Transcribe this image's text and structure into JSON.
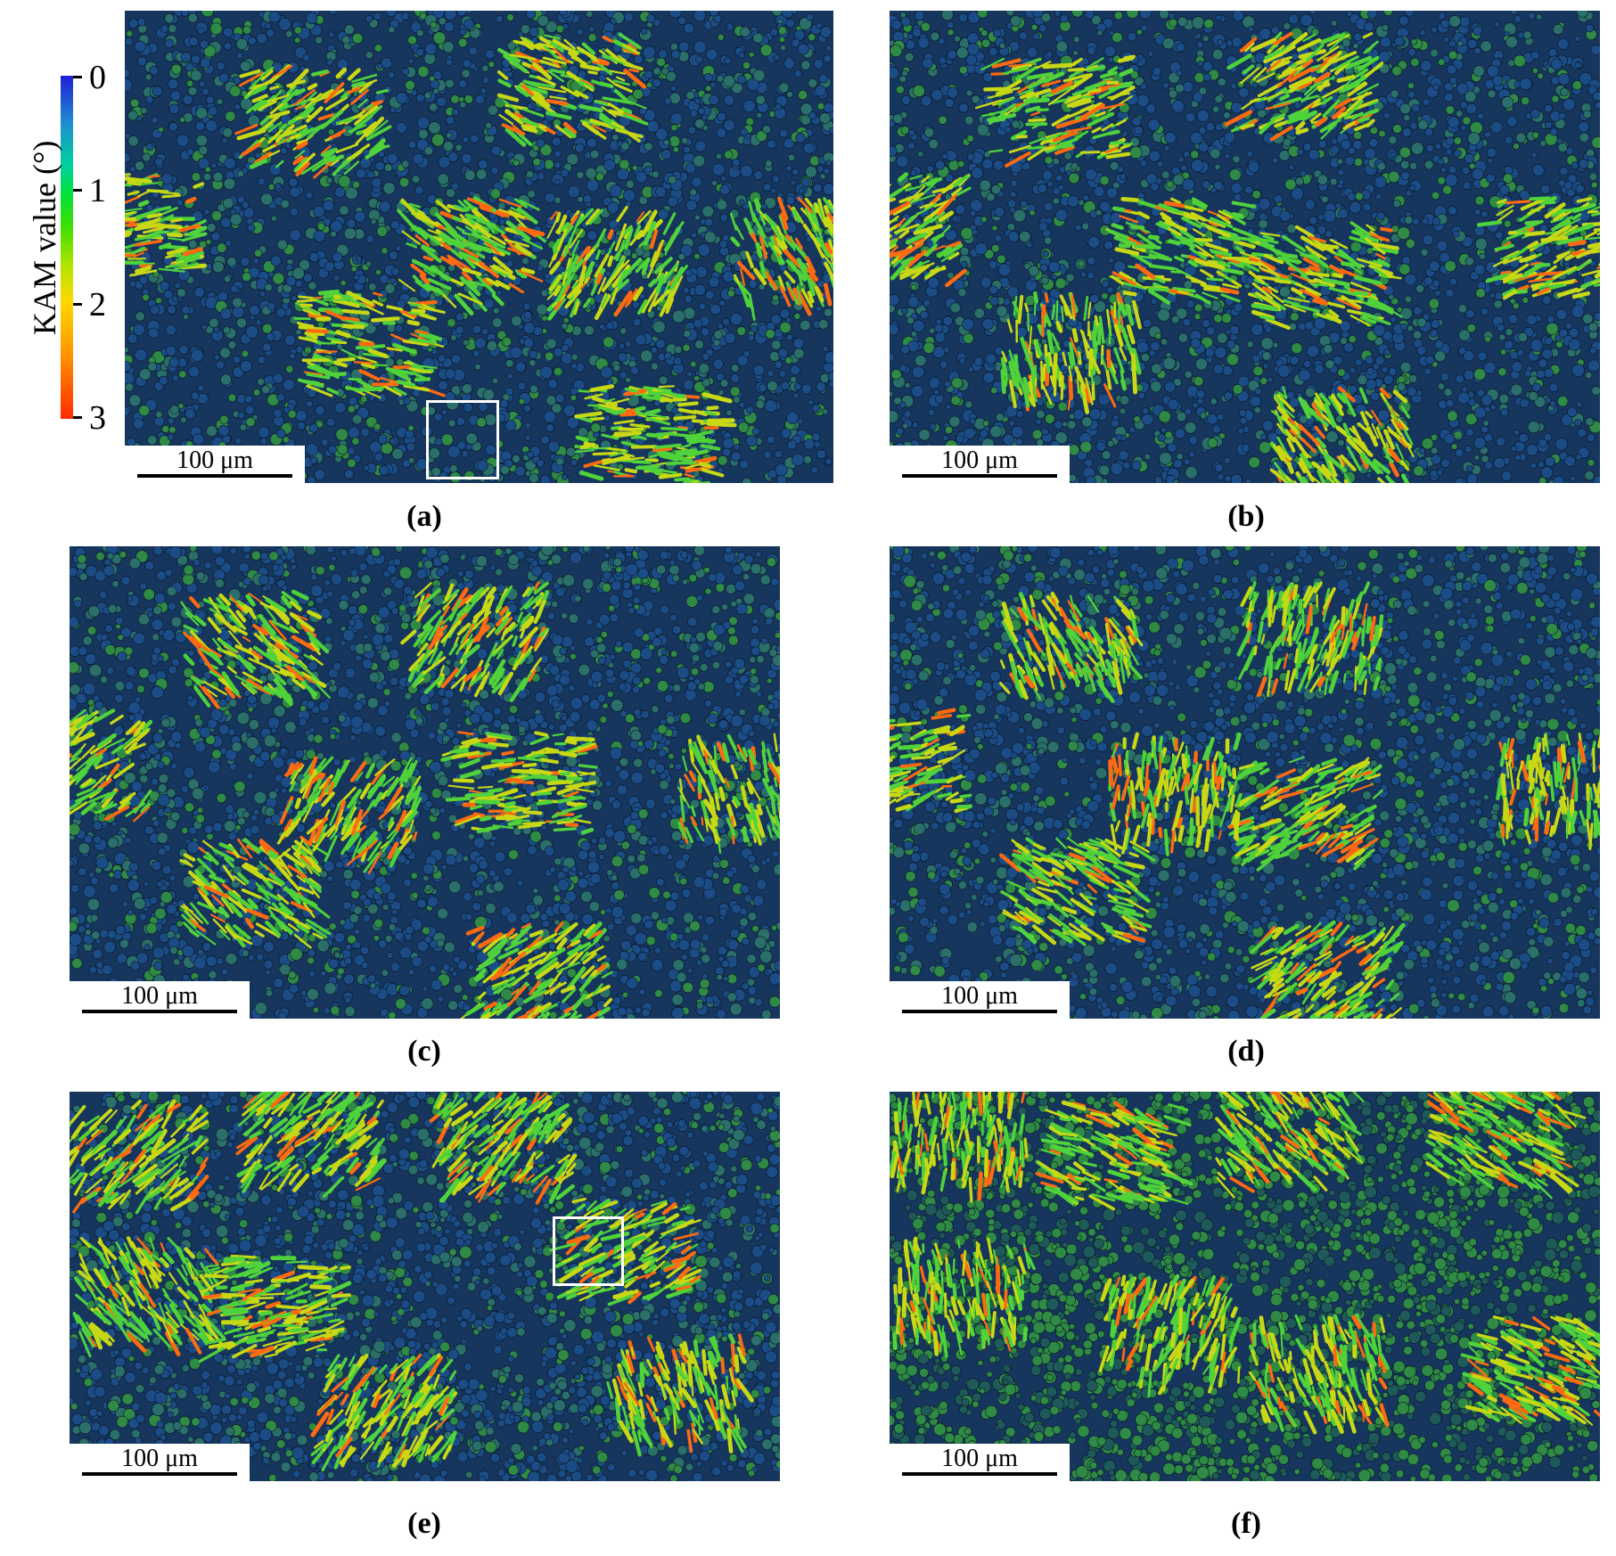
{
  "colorbar": {
    "title": "KAM value (°)",
    "ticks": [
      "0",
      "1",
      "2",
      "3"
    ],
    "colors": [
      "#1f1fd6",
      "#00e040",
      "#ffd800",
      "#ff2a00"
    ]
  },
  "panels": [
    {
      "id": "a",
      "label": "(a)",
      "scale_bar": "100 μm",
      "has_roi_box": true
    },
    {
      "id": "b",
      "label": "(b)",
      "scale_bar": "100 μm",
      "has_roi_box": false
    },
    {
      "id": "c",
      "label": "(c)",
      "scale_bar": "100 μm",
      "has_roi_box": false
    },
    {
      "id": "d",
      "label": "(d)",
      "scale_bar": "100 μm",
      "has_roi_box": false
    },
    {
      "id": "e",
      "label": "(e)",
      "scale_bar": "100 μm",
      "has_roi_box": true
    },
    {
      "id": "f",
      "label": "(f)",
      "scale_bar": "100 μm",
      "has_roi_box": false
    }
  ],
  "map_colors": {
    "matrix_blue": "#16365e",
    "grain_green": "#2f8a46",
    "lath_green": "#4fd23a",
    "lath_yellow": "#c8d814",
    "lath_red": "#ff6a10",
    "boundary": "#000000"
  }
}
